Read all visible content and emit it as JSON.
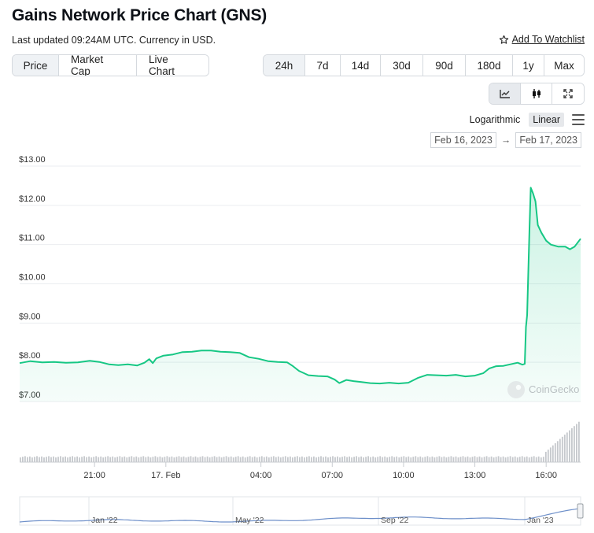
{
  "header": {
    "title": "Gains Network Price Chart (GNS)",
    "updated": "Last updated 09:24AM UTC. Currency in USD.",
    "watchlist_label": "Add To Watchlist"
  },
  "tabs": [
    {
      "label": "Price",
      "active": true
    },
    {
      "label": "Market Cap",
      "active": false
    },
    {
      "label": "Live Chart",
      "active": false
    }
  ],
  "ranges": [
    {
      "label": "24h",
      "active": true
    },
    {
      "label": "7d",
      "active": false
    },
    {
      "label": "14d",
      "active": false
    },
    {
      "label": "30d",
      "active": false
    },
    {
      "label": "90d",
      "active": false
    },
    {
      "label": "180d",
      "active": false
    },
    {
      "label": "1y",
      "active": false
    },
    {
      "label": "Max",
      "active": false
    }
  ],
  "chart_type_icons": [
    "line-chart-icon",
    "candlestick-icon",
    "fullscreen-icon"
  ],
  "scale": {
    "log_label": "Logarithmic",
    "linear_label": "Linear",
    "selected": "Linear"
  },
  "date_range": {
    "from": "Feb 16, 2023",
    "to": "Feb 17, 2023",
    "arrow": "→"
  },
  "watermark": "CoinGecko",
  "colors": {
    "line": "#16c784",
    "fill": "#16c784",
    "volume": "#c5c8cc",
    "navigator": "#6d8fc9"
  },
  "chart_data": {
    "type": "line",
    "title": "Gains Network Price Chart (GNS)",
    "currency": "USD",
    "x_range_hours": [
      17.85,
      41.45
    ],
    "ylim": [
      7,
      13
    ],
    "yticks": [
      7,
      8,
      9,
      10,
      11,
      12,
      13
    ],
    "ytick_labels": [
      "$7.00",
      "$8.00",
      "$9.00",
      "$10.00",
      "$11.00",
      "$12.00",
      "$13.00"
    ],
    "xticks": [
      {
        "t": 21,
        "label": "21:00"
      },
      {
        "t": 24,
        "label": "17. Feb"
      },
      {
        "t": 28,
        "label": "04:00"
      },
      {
        "t": 31,
        "label": "07:00"
      },
      {
        "t": 34,
        "label": "10:00"
      },
      {
        "t": 37,
        "label": "13:00"
      },
      {
        "t": 40,
        "label": "16:00"
      }
    ],
    "grid": true,
    "price": [
      [
        17.85,
        7.98
      ],
      [
        18.3,
        8.03
      ],
      [
        18.8,
        8.0
      ],
      [
        19.3,
        8.01
      ],
      [
        19.8,
        7.99
      ],
      [
        20.3,
        8.0
      ],
      [
        20.8,
        8.04
      ],
      [
        21.2,
        8.01
      ],
      [
        21.6,
        7.95
      ],
      [
        22.0,
        7.93
      ],
      [
        22.4,
        7.95
      ],
      [
        22.8,
        7.92
      ],
      [
        23.1,
        7.99
      ],
      [
        23.3,
        8.08
      ],
      [
        23.45,
        7.98
      ],
      [
        23.6,
        8.1
      ],
      [
        23.9,
        8.17
      ],
      [
        24.3,
        8.2
      ],
      [
        24.7,
        8.26
      ],
      [
        25.1,
        8.27
      ],
      [
        25.5,
        8.3
      ],
      [
        25.9,
        8.3
      ],
      [
        26.3,
        8.27
      ],
      [
        26.7,
        8.26
      ],
      [
        27.1,
        8.24
      ],
      [
        27.5,
        8.13
      ],
      [
        27.9,
        8.09
      ],
      [
        28.3,
        8.03
      ],
      [
        28.7,
        8.01
      ],
      [
        29.1,
        8.0
      ],
      [
        29.35,
        7.9
      ],
      [
        29.6,
        7.78
      ],
      [
        30.0,
        7.67
      ],
      [
        30.4,
        7.65
      ],
      [
        30.8,
        7.64
      ],
      [
        31.1,
        7.56
      ],
      [
        31.3,
        7.47
      ],
      [
        31.6,
        7.55
      ],
      [
        31.9,
        7.52
      ],
      [
        32.2,
        7.5
      ],
      [
        32.6,
        7.47
      ],
      [
        33.0,
        7.46
      ],
      [
        33.4,
        7.48
      ],
      [
        33.8,
        7.46
      ],
      [
        34.2,
        7.48
      ],
      [
        34.6,
        7.6
      ],
      [
        35.0,
        7.68
      ],
      [
        35.4,
        7.67
      ],
      [
        35.8,
        7.66
      ],
      [
        36.2,
        7.68
      ],
      [
        36.6,
        7.64
      ],
      [
        37.0,
        7.66
      ],
      [
        37.35,
        7.72
      ],
      [
        37.6,
        7.84
      ],
      [
        37.9,
        7.9
      ],
      [
        38.2,
        7.91
      ],
      [
        38.5,
        7.95
      ],
      [
        38.8,
        7.99
      ],
      [
        39.0,
        7.94
      ],
      [
        39.1,
        7.96
      ],
      [
        39.15,
        8.9
      ],
      [
        39.2,
        9.2
      ],
      [
        39.25,
        10.3
      ],
      [
        39.3,
        11.4
      ],
      [
        39.35,
        12.45
      ],
      [
        39.45,
        12.3
      ],
      [
        39.55,
        12.1
      ],
      [
        39.65,
        11.5
      ],
      [
        39.8,
        11.3
      ],
      [
        40.0,
        11.1
      ],
      [
        40.2,
        11.0
      ],
      [
        40.5,
        10.95
      ],
      [
        40.8,
        10.95
      ],
      [
        41.0,
        10.88
      ],
      [
        41.2,
        10.95
      ],
      [
        41.45,
        11.15
      ]
    ],
    "navigator": {
      "labels": [
        "Jan '22",
        "May '22",
        "Sep '22",
        "Jan '23"
      ]
    }
  }
}
